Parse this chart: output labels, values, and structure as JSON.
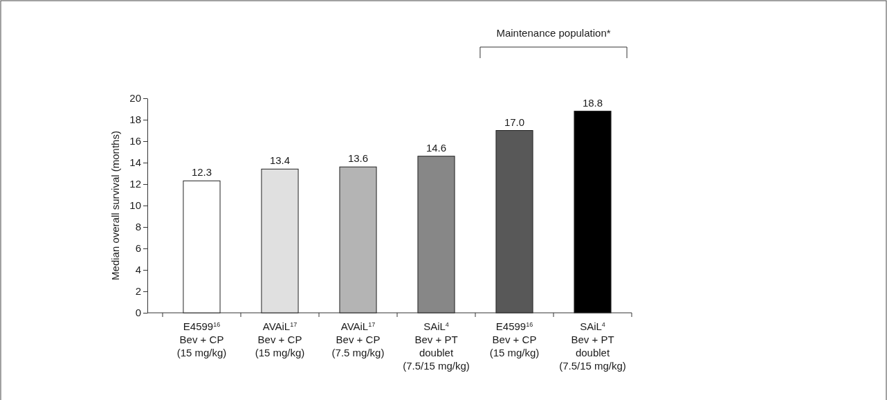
{
  "chart_data": {
    "type": "bar",
    "ylabel": "Median overall survival (months)",
    "categories": [
      "E4599$^{16}$\nBev + CP\n(15 mg/kg)",
      "AVAiL$^{17}$\nBev + CP\n(15 mg/kg)",
      "AVAiL$^{17}$\nBev + CP\n(7.5 mg/kg)",
      "SAiL$^{4}$\nBev + PT\ndoublet\n(7.5/15 mg/kg)",
      "E4599$^{16}$\nBev + CP\n(15 mg/kg)",
      "SAiL$^{4}$\nBev + PT\ndoublet\n(7.5/15 mg/kg)"
    ],
    "values": [
      12.3,
      13.4,
      13.6,
      14.6,
      17.0,
      18.8
    ],
    "value_labels": [
      "12.3",
      "13.4",
      "13.6",
      "14.6",
      "17.0",
      "18.8"
    ],
    "colors": [
      "#ffffff",
      "#e0e0e0",
      "#b4b4b4",
      "#878787",
      "#585858",
      "#000000"
    ],
    "ylim": [
      0,
      20
    ],
    "yticks": [
      0,
      2,
      4,
      6,
      8,
      10,
      12,
      14,
      16,
      18,
      20
    ],
    "annotations": [
      "Maintenance population*"
    ]
  }
}
